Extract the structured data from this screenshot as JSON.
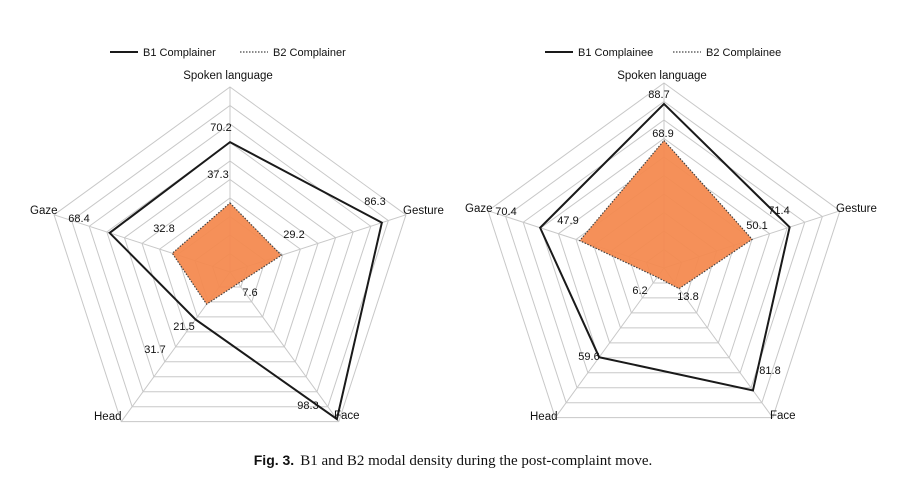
{
  "caption": {
    "label": "Fig. 3.",
    "text": "B1 and B2 modal density during the post-complaint move."
  },
  "colors": {
    "b1_line": "#1a1a1a",
    "b2_fill": "#f48a50",
    "b2_line": "#444444",
    "grid": "#c8c8c8"
  },
  "chart_data": [
    {
      "type": "radar",
      "axes": [
        "Spoken language",
        "Gesture",
        "Face",
        "Head",
        "Gaze"
      ],
      "range": [
        0,
        100
      ],
      "grid_levels": 10,
      "legend_placement": "top",
      "series": [
        {
          "name": "B1 Complainer",
          "style": "solid",
          "values": [
            70.2,
            86.3,
            98.3,
            31.7,
            68.4
          ]
        },
        {
          "name": "B2 Complainer",
          "style": "dotted-filled",
          "values": [
            37.3,
            29.2,
            7.6,
            21.5,
            32.8
          ]
        }
      ]
    },
    {
      "type": "radar",
      "axes": [
        "Spoken language",
        "Gesture",
        "Face",
        "Head",
        "Gaze"
      ],
      "range": [
        0,
        100
      ],
      "grid_levels": 10,
      "legend_placement": "top",
      "series": [
        {
          "name": "B1 Complainee",
          "style": "solid",
          "values": [
            88.7,
            71.4,
            81.8,
            59.6,
            70.4
          ]
        },
        {
          "name": "B2 Complainee",
          "style": "dotted-filled",
          "values": [
            68.9,
            50.1,
            13.8,
            6.2,
            47.9
          ]
        }
      ]
    }
  ]
}
